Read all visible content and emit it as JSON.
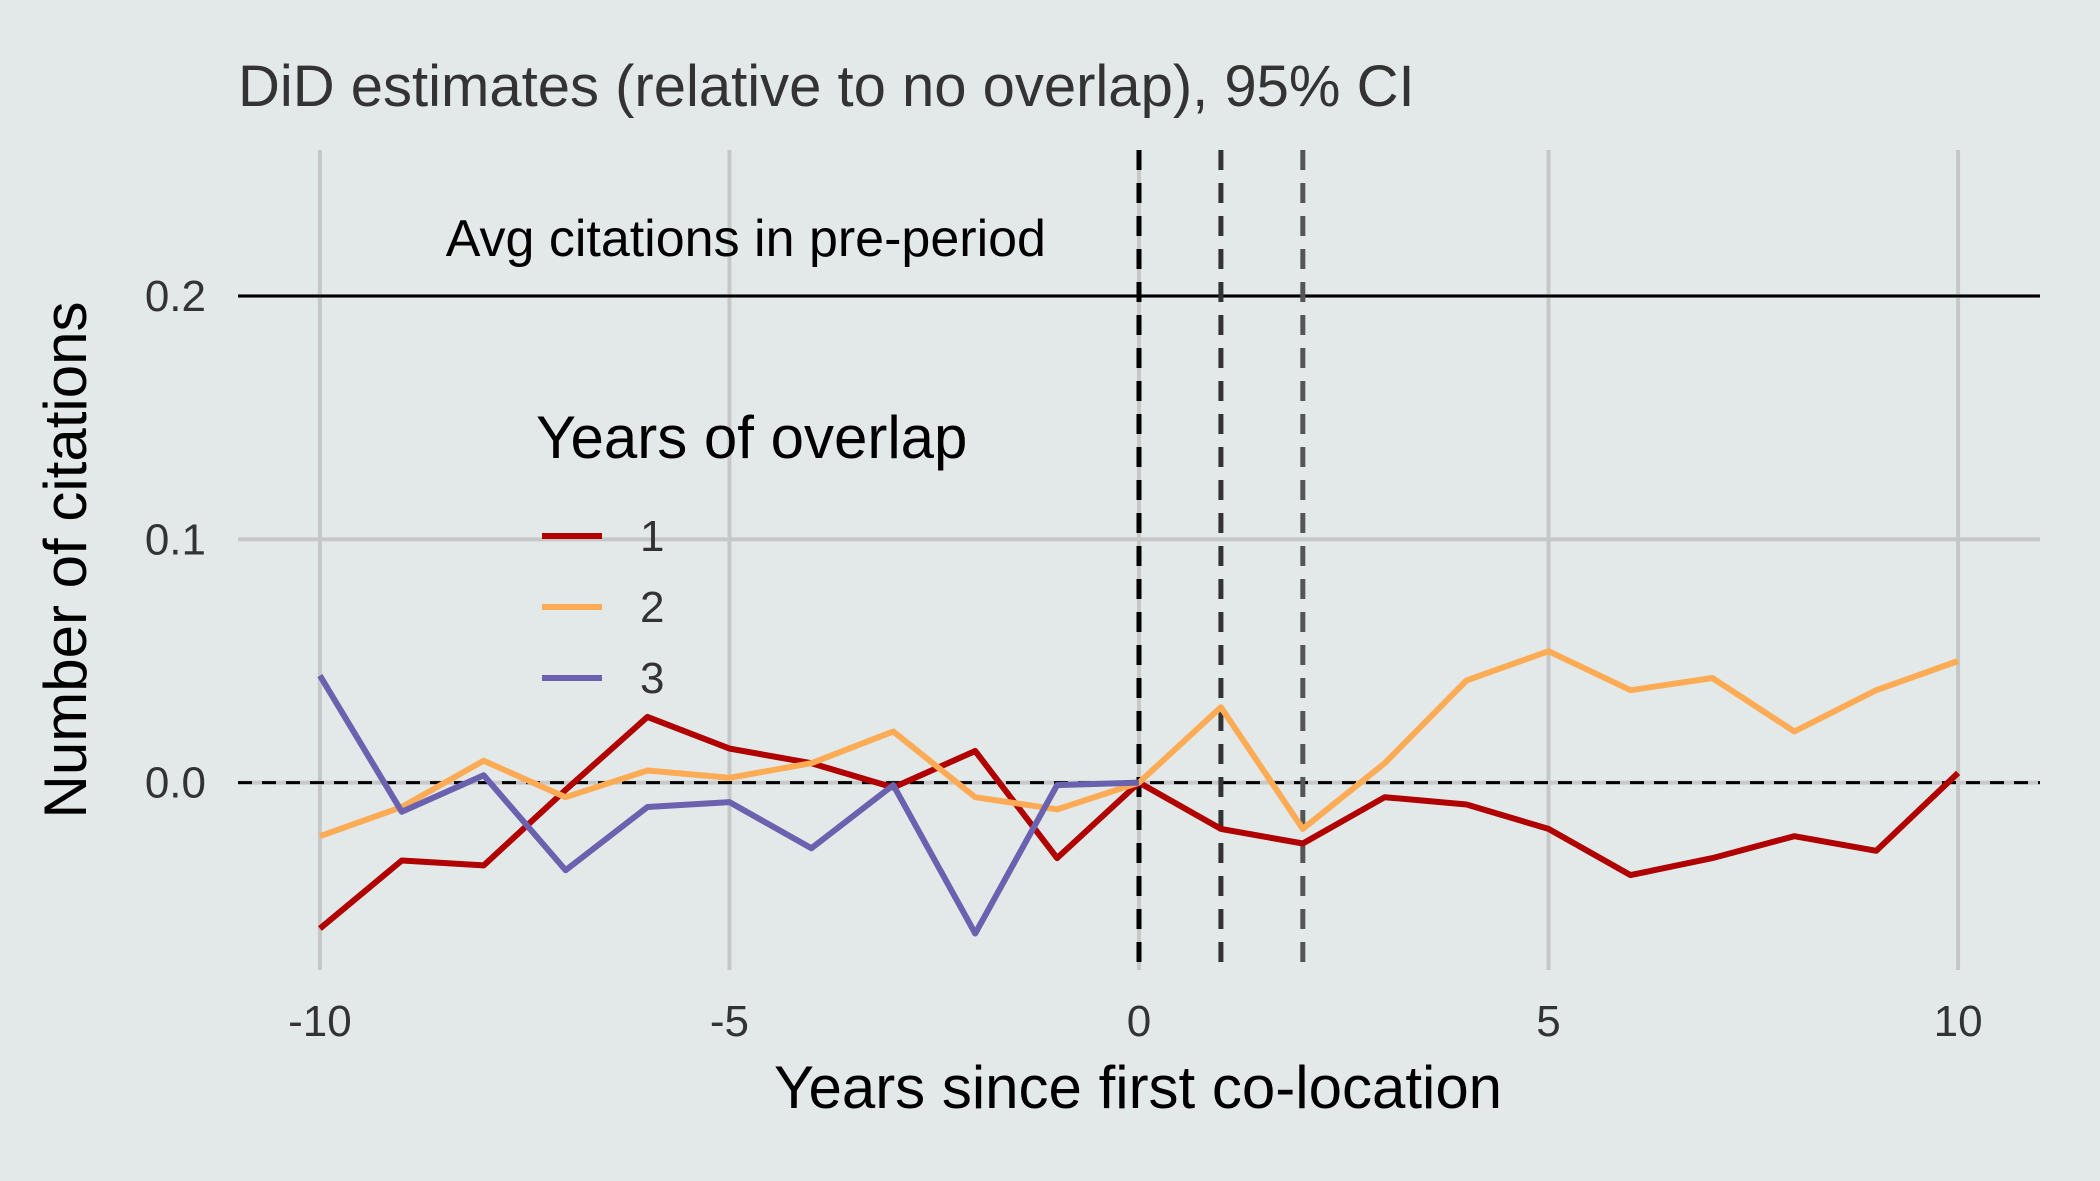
{
  "chart_data": {
    "type": "line",
    "title": "DiD estimates (relative to no overlap), 95% CI",
    "xlabel": "Years since first co-location",
    "ylabel": "Number of citations",
    "xlim": [
      -11,
      11
    ],
    "ylim": [
      -0.077,
      0.26
    ],
    "x_ticks": [
      -10,
      -5,
      0,
      5,
      10
    ],
    "x_tick_labels": [
      "-10",
      "-5",
      "0",
      "5",
      "10"
    ],
    "y_ticks": [
      0.0,
      0.1,
      0.2
    ],
    "y_tick_labels": [
      "0.0",
      "0.1",
      "0.2"
    ],
    "grid": true,
    "horizontal_lines": [
      {
        "y": 0.2,
        "style": "solid",
        "label": "Avg citations in pre-period"
      },
      {
        "y": 0.0,
        "style": "dashed",
        "label": ""
      }
    ],
    "vertical_lines": [
      {
        "x": 0,
        "style": "dashed",
        "color": "#000000"
      },
      {
        "x": 1,
        "style": "dashed",
        "color": "#333333"
      },
      {
        "x": 2,
        "style": "dashed",
        "color": "#555555"
      }
    ],
    "annotations": [
      {
        "text": "Avg citations in pre-period",
        "x": -4.8,
        "y": 0.2
      }
    ],
    "legend_title": "Years of overlap",
    "legend_position": "center-left",
    "x": [
      -10,
      -9,
      -8,
      -7,
      -6,
      -5,
      -4,
      -3,
      -2,
      -1,
      0,
      1,
      2,
      3,
      4,
      5,
      6,
      7,
      8,
      9,
      10
    ],
    "series": [
      {
        "name": "1",
        "color": "#b00000",
        "values": [
          -0.06,
          -0.032,
          -0.034,
          -0.003,
          0.027,
          0.014,
          0.008,
          -0.002,
          0.013,
          -0.031,
          0.0,
          -0.019,
          -0.025,
          -0.006,
          -0.009,
          -0.019,
          -0.038,
          -0.031,
          -0.022,
          -0.028,
          0.004
        ]
      },
      {
        "name": "2",
        "color": "#fdab54",
        "values": [
          -0.022,
          -0.01,
          0.009,
          -0.006,
          0.005,
          0.002,
          0.008,
          0.021,
          -0.006,
          -0.011,
          0.0,
          0.031,
          -0.019,
          0.008,
          0.042,
          0.054,
          0.038,
          0.043,
          0.021,
          0.038,
          0.05
        ]
      },
      {
        "name": "3",
        "color": "#6a62ae",
        "values": [
          0.044,
          -0.012,
          0.003,
          -0.036,
          -0.01,
          -0.008,
          -0.027,
          -0.001,
          -0.062,
          -0.001,
          0.0,
          null,
          null,
          null,
          null,
          null,
          null,
          null,
          null,
          null,
          null
        ]
      }
    ]
  }
}
